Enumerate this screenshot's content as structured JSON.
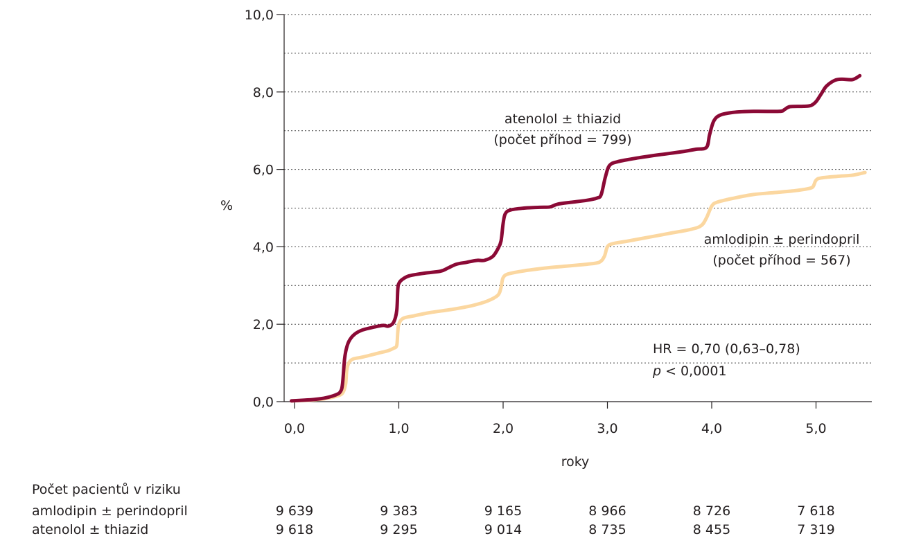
{
  "chart_data": {
    "type": "line",
    "xlabel": "roky",
    "ylabel": "%",
    "xlim": [
      -0.05,
      5.55
    ],
    "ylim": [
      0,
      10
    ],
    "x_ticks": [
      0,
      1,
      2,
      3,
      4,
      5
    ],
    "x_tick_labels": [
      "0,0",
      "1,0",
      "2,0",
      "3,0",
      "4,0",
      "5,0"
    ],
    "y_ticks": [
      0,
      2,
      4,
      6,
      8,
      10
    ],
    "y_tick_labels": [
      "0,0",
      "2,0",
      "4,0",
      "6,0",
      "8,0",
      "10,0"
    ],
    "y_gridlines": [
      1,
      2,
      3,
      4,
      5,
      6,
      7,
      8,
      9,
      10
    ],
    "grid": "horizontal dotted",
    "series": [
      {
        "name": "atenolol ± thiazid",
        "color": "#8b0a36",
        "points": [
          [
            -0.03,
            0.02
          ],
          [
            0.1,
            0.04
          ],
          [
            0.2,
            0.06
          ],
          [
            0.3,
            0.1
          ],
          [
            0.4,
            0.18
          ],
          [
            0.44,
            0.26
          ],
          [
            0.46,
            0.45
          ],
          [
            0.48,
            1.1
          ],
          [
            0.5,
            1.4
          ],
          [
            0.53,
            1.6
          ],
          [
            0.58,
            1.75
          ],
          [
            0.65,
            1.85
          ],
          [
            0.75,
            1.92
          ],
          [
            0.85,
            1.97
          ],
          [
            0.9,
            1.95
          ],
          [
            0.95,
            2.05
          ],
          [
            0.98,
            2.35
          ],
          [
            0.99,
            2.9
          ],
          [
            1.0,
            3.05
          ],
          [
            1.03,
            3.15
          ],
          [
            1.1,
            3.25
          ],
          [
            1.25,
            3.32
          ],
          [
            1.4,
            3.37
          ],
          [
            1.47,
            3.45
          ],
          [
            1.55,
            3.55
          ],
          [
            1.65,
            3.6
          ],
          [
            1.75,
            3.65
          ],
          [
            1.82,
            3.65
          ],
          [
            1.9,
            3.75
          ],
          [
            1.95,
            3.95
          ],
          [
            1.98,
            4.15
          ],
          [
            2.0,
            4.6
          ],
          [
            2.02,
            4.85
          ],
          [
            2.07,
            4.95
          ],
          [
            2.2,
            5.0
          ],
          [
            2.35,
            5.02
          ],
          [
            2.45,
            5.03
          ],
          [
            2.52,
            5.1
          ],
          [
            2.65,
            5.15
          ],
          [
            2.8,
            5.2
          ],
          [
            2.9,
            5.26
          ],
          [
            2.94,
            5.35
          ],
          [
            2.98,
            5.8
          ],
          [
            3.02,
            6.1
          ],
          [
            3.1,
            6.2
          ],
          [
            3.3,
            6.3
          ],
          [
            3.5,
            6.38
          ],
          [
            3.7,
            6.45
          ],
          [
            3.85,
            6.52
          ],
          [
            3.95,
            6.57
          ],
          [
            3.98,
            6.9
          ],
          [
            4.02,
            7.25
          ],
          [
            4.08,
            7.4
          ],
          [
            4.2,
            7.47
          ],
          [
            4.4,
            7.5
          ],
          [
            4.65,
            7.5
          ],
          [
            4.7,
            7.55
          ],
          [
            4.75,
            7.62
          ],
          [
            4.88,
            7.63
          ],
          [
            4.95,
            7.65
          ],
          [
            5.0,
            7.75
          ],
          [
            5.05,
            7.95
          ],
          [
            5.1,
            8.15
          ],
          [
            5.18,
            8.3
          ],
          [
            5.25,
            8.33
          ],
          [
            5.35,
            8.32
          ],
          [
            5.42,
            8.42
          ]
        ]
      },
      {
        "name": "amlodipin ± perindopril",
        "color": "#fbd7a0",
        "points": [
          [
            -0.03,
            0.02
          ],
          [
            0.1,
            0.03
          ],
          [
            0.2,
            0.05
          ],
          [
            0.3,
            0.08
          ],
          [
            0.4,
            0.14
          ],
          [
            0.46,
            0.22
          ],
          [
            0.49,
            0.45
          ],
          [
            0.5,
            0.8
          ],
          [
            0.52,
            1.0
          ],
          [
            0.56,
            1.1
          ],
          [
            0.65,
            1.15
          ],
          [
            0.8,
            1.25
          ],
          [
            0.9,
            1.32
          ],
          [
            0.95,
            1.38
          ],
          [
            0.98,
            1.45
          ],
          [
            0.99,
            1.8
          ],
          [
            1.0,
            2.0
          ],
          [
            1.04,
            2.15
          ],
          [
            1.15,
            2.22
          ],
          [
            1.3,
            2.3
          ],
          [
            1.5,
            2.38
          ],
          [
            1.7,
            2.48
          ],
          [
            1.85,
            2.6
          ],
          [
            1.95,
            2.75
          ],
          [
            1.98,
            2.95
          ],
          [
            2.0,
            3.2
          ],
          [
            2.05,
            3.3
          ],
          [
            2.2,
            3.38
          ],
          [
            2.4,
            3.45
          ],
          [
            2.6,
            3.5
          ],
          [
            2.8,
            3.55
          ],
          [
            2.92,
            3.6
          ],
          [
            2.97,
            3.75
          ],
          [
            3.0,
            4.0
          ],
          [
            3.05,
            4.08
          ],
          [
            3.2,
            4.15
          ],
          [
            3.4,
            4.25
          ],
          [
            3.6,
            4.35
          ],
          [
            3.8,
            4.45
          ],
          [
            3.9,
            4.55
          ],
          [
            3.95,
            4.75
          ],
          [
            4.0,
            5.05
          ],
          [
            4.05,
            5.15
          ],
          [
            4.2,
            5.25
          ],
          [
            4.4,
            5.35
          ],
          [
            4.6,
            5.4
          ],
          [
            4.8,
            5.45
          ],
          [
            4.92,
            5.5
          ],
          [
            4.97,
            5.55
          ],
          [
            5.0,
            5.72
          ],
          [
            5.05,
            5.78
          ],
          [
            5.2,
            5.82
          ],
          [
            5.35,
            5.85
          ],
          [
            5.47,
            5.92
          ]
        ]
      }
    ],
    "annotations": {
      "atenolol_name": "atenolol ± thiazid",
      "atenolol_events": "(počet příhod = 799)",
      "amlodipin_name": "amlodipin ± perindopril",
      "amlodipin_events": "(počet příhod = 567)",
      "hr": "HR = 0,70 (0,63–0,78)",
      "p_symbol": "p",
      "p_rest": " < 0,0001"
    },
    "at_risk": {
      "title": "Počet pacientů v riziku",
      "rows": [
        {
          "label": "amlodipin ± perindopril",
          "values": [
            "9 639",
            "9 383",
            "9 165",
            "8 966",
            "8 726",
            "7 618"
          ]
        },
        {
          "label": "atenolol ± thiazid",
          "values": [
            "9 618",
            "9 295",
            "9 014",
            "8 735",
            "8 455",
            "7 319"
          ]
        }
      ]
    }
  }
}
